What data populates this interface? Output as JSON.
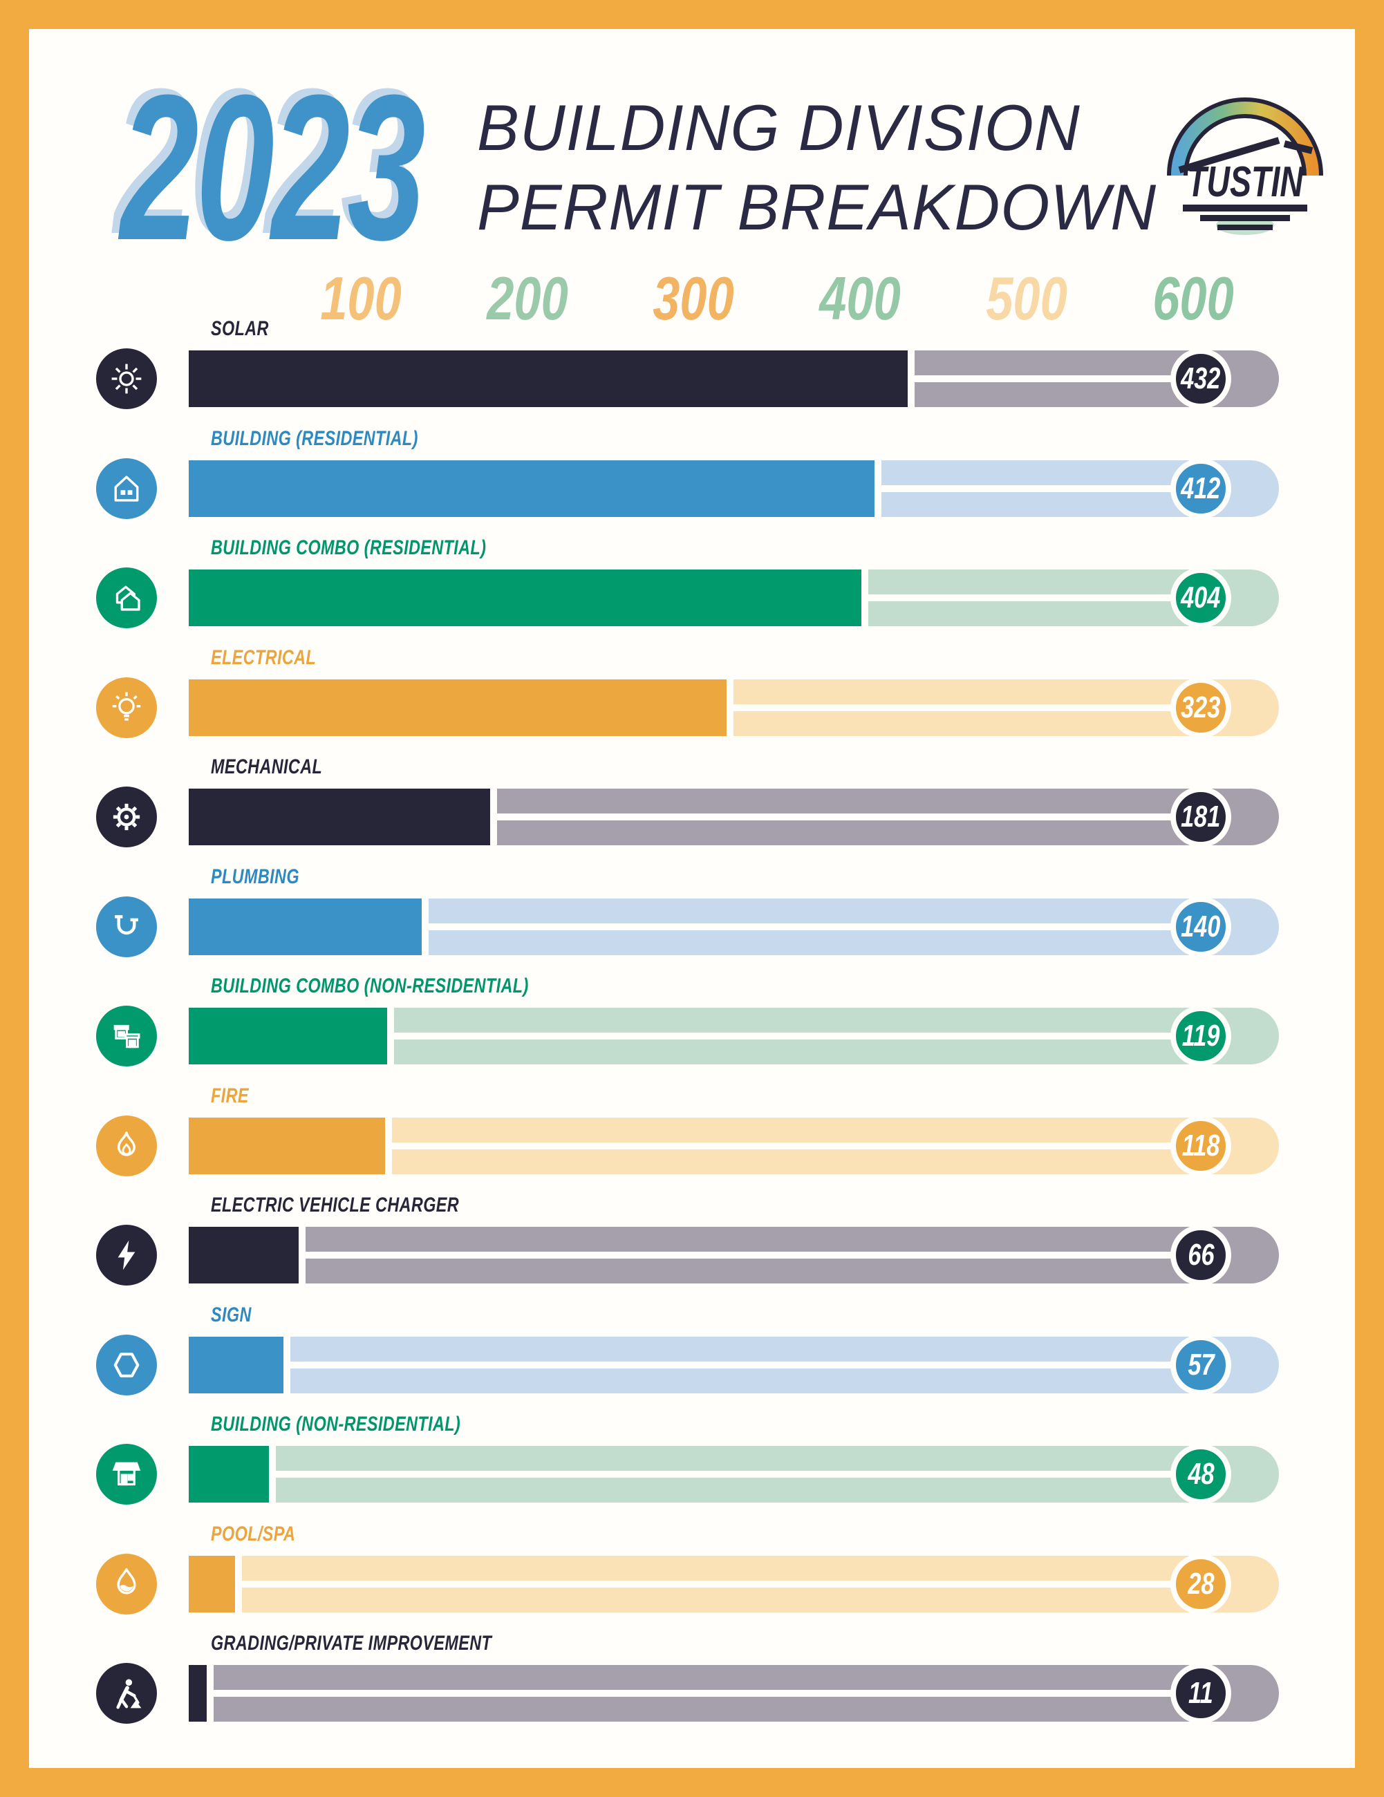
{
  "header": {
    "year": "2023",
    "title_line1": "BUILDING DIVISION",
    "title_line2": "PERMIT BREAKDOWN",
    "logo_text": "TUSTIN",
    "year_color": "#3f93c9",
    "year_shadow_color": "#c3d7ea",
    "title_color": "#2b2a45"
  },
  "frame_color": "#f1ab41",
  "axis": {
    "ticks": [
      {
        "label": "100",
        "value": 100,
        "color": "#f5c077"
      },
      {
        "label": "200",
        "value": 200,
        "color": "#9bcaab"
      },
      {
        "label": "300",
        "value": 300,
        "color": "#f2b463"
      },
      {
        "label": "400",
        "value": 400,
        "color": "#95c8a7"
      },
      {
        "label": "500",
        "value": 500,
        "color": "#f8d8a4"
      },
      {
        "label": "600",
        "value": 600,
        "color": "#8ec5a2"
      }
    ]
  },
  "palette": {
    "dark": {
      "bar": "#272639",
      "track": "#a5a0ab",
      "label": "#272639"
    },
    "blue": {
      "bar": "#3a92c6",
      "track": "#c7daed",
      "label": "#2d89c0"
    },
    "green": {
      "bar": "#009a6c",
      "track": "#c2ddcd",
      "label": "#00956a"
    },
    "orange": {
      "bar": "#eda73f",
      "track": "#fbe2b6",
      "label": "#eca43c"
    }
  },
  "rows": [
    {
      "label": "SOLAR",
      "value": 432,
      "palette": "dark",
      "icon": "sun-icon"
    },
    {
      "label": "BUILDING (RESIDENTIAL)",
      "value": 412,
      "palette": "blue",
      "icon": "house-icon"
    },
    {
      "label": "BUILDING COMBO (RESIDENTIAL)",
      "value": 404,
      "palette": "green",
      "icon": "two-houses-icon"
    },
    {
      "label": "ELECTRICAL",
      "value": 323,
      "palette": "orange",
      "icon": "lightbulb-icon"
    },
    {
      "label": "MECHANICAL",
      "value": 181,
      "palette": "dark",
      "icon": "gear-icon"
    },
    {
      "label": "PLUMBING",
      "value": 140,
      "palette": "blue",
      "icon": "pipe-icon"
    },
    {
      "label": "BUILDING COMBO (NON-RESIDENTIAL)",
      "value": 119,
      "palette": "green",
      "icon": "two-storefronts-icon"
    },
    {
      "label": "FIRE",
      "value": 118,
      "palette": "orange",
      "icon": "flame-icon"
    },
    {
      "label": "ELECTRIC VEHICLE CHARGER",
      "value": 66,
      "palette": "dark",
      "icon": "lightning-bolt-icon"
    },
    {
      "label": "SIGN",
      "value": 57,
      "palette": "blue",
      "icon": "hexagon-icon"
    },
    {
      "label": "BUILDING (NON-RESIDENTIAL)",
      "value": 48,
      "palette": "green",
      "icon": "storefront-icon"
    },
    {
      "label": "POOL/SPA",
      "value": 28,
      "palette": "orange",
      "icon": "water-droplet-icon"
    },
    {
      "label": "GRADING/PRIVATE IMPROVEMENT",
      "value": 11,
      "palette": "dark",
      "icon": "construction-worker-icon"
    }
  ],
  "chart_data": {
    "type": "bar",
    "orientation": "horizontal",
    "title": "2023 Building Division Permit Breakdown",
    "categories": [
      "Solar",
      "Building (Residential)",
      "Building Combo (Residential)",
      "Electrical",
      "Mechanical",
      "Plumbing",
      "Building Combo (Non-Residential)",
      "Fire",
      "Electric Vehicle Charger",
      "Sign",
      "Building (Non-Residential)",
      "Pool/Spa",
      "Grading/Private Improvement"
    ],
    "values": [
      432,
      412,
      404,
      323,
      181,
      140,
      119,
      118,
      66,
      57,
      48,
      28,
      11
    ],
    "xlim": [
      0,
      600
    ],
    "x_ticks": [
      100,
      200,
      300,
      400,
      500,
      600
    ],
    "grid": false,
    "legend": false,
    "value_labels": "badge at right end of each bar"
  }
}
